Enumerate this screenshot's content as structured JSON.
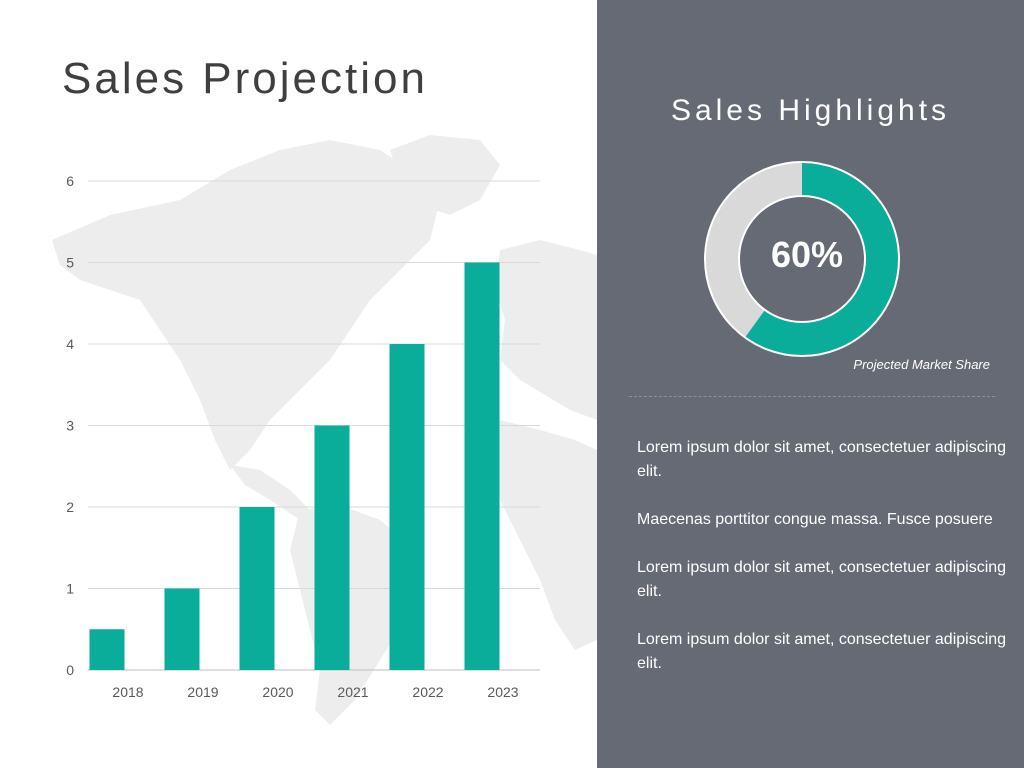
{
  "title": "Sales Projection",
  "highlights": {
    "title": "Sales Highlights",
    "share_value": 60,
    "share_label": "60%",
    "share_caption": "Projected Market Share",
    "paragraphs": [
      "Lorem ipsum dolor sit amet, consectetuer adipiscing elit.",
      "Maecenas porttitor congue massa. Fusce posuere",
      "Lorem ipsum dolor sit amet, consectetuer adipiscing elit.",
      "Lorem ipsum dolor sit amet, consectetuer adipiscing elit."
    ]
  },
  "colors": {
    "accent": "#0aad9a",
    "panel": "#666a74",
    "donut_rest": "#d9d9d9",
    "text_dark": "#3f3f3f",
    "map": "#ededed"
  },
  "chart_data": [
    {
      "type": "bar",
      "categories": [
        "2018",
        "2019",
        "2020",
        "2021",
        "2022",
        "2023"
      ],
      "values": [
        0.5,
        1,
        2,
        3,
        4,
        5
      ],
      "ylim": [
        0,
        6
      ],
      "yticks": [
        0,
        1,
        2,
        3,
        4,
        5,
        6
      ],
      "grid": true,
      "xlabel": "",
      "ylabel": ""
    },
    {
      "type": "pie",
      "categories": [
        "Projected Market Share",
        ""
      ],
      "values": [
        60,
        40
      ]
    }
  ]
}
